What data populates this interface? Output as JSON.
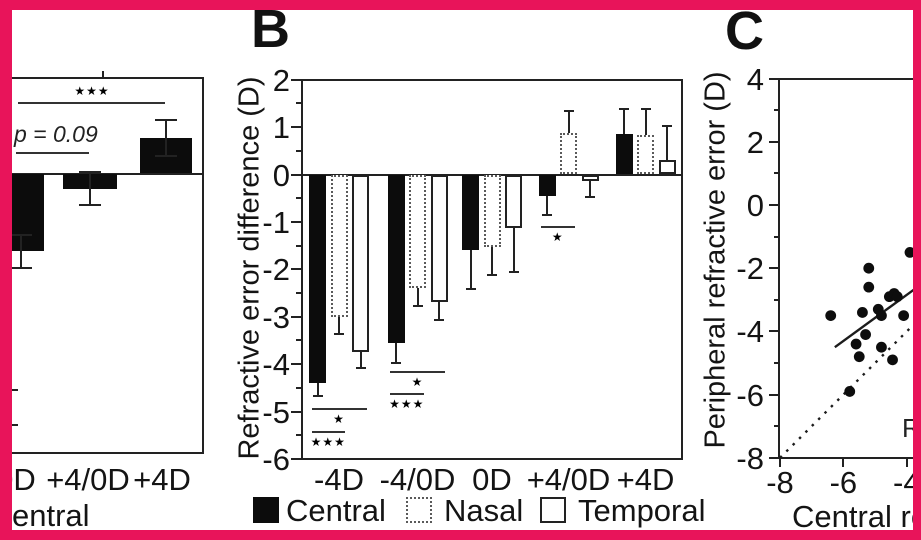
{
  "figure": {
    "border_color": "#E8145A",
    "background": "#ffffff"
  },
  "chart_data": [
    {
      "id": "A",
      "type": "bar",
      "cropped_left": true,
      "ylim": [
        -6,
        2
      ],
      "categories": [
        "0D",
        "+4/0D",
        "+4D"
      ],
      "series": [
        {
          "name": "Central",
          "fill": "black",
          "values": [
            -1.66,
            -0.32,
            0.76
          ],
          "errors": [
            0.38,
            0.37,
            0.4
          ]
        }
      ],
      "annotations": [
        {
          "kind": "significance",
          "text": "★★★",
          "y_line": 1.49
        },
        {
          "kind": "p-value",
          "text": "p = 0.09",
          "y_line": 0.43
        }
      ],
      "legend_cropped_text": "entral"
    },
    {
      "id": "B",
      "panel_label": "B",
      "type": "bar",
      "ylabel": "Refractive error difference (D)",
      "ylim": [
        -6,
        2
      ],
      "y_ticks": [
        2,
        1,
        0,
        -1,
        -2,
        -3,
        -4,
        -5,
        -6
      ],
      "categories": [
        "-4D",
        "-4/0D",
        "0D",
        "+4/0D",
        "+4D"
      ],
      "series": [
        {
          "name": "Central",
          "fill": "black",
          "values": [
            -4.4,
            -3.55,
            -1.6,
            -0.45,
            0.85
          ],
          "errors": [
            0.3,
            0.45,
            0.83,
            0.42,
            0.55
          ]
        },
        {
          "name": "Nasal",
          "fill": "stipple",
          "values": [
            -3.0,
            -2.4,
            -1.53,
            0.87,
            0.84
          ],
          "errors": [
            0.38,
            0.4,
            0.61,
            0.5,
            0.56
          ]
        },
        {
          "name": "Temporal",
          "fill": "white",
          "values": [
            -3.75,
            -2.68,
            -1.12,
            -0.14,
            0.3
          ],
          "errors": [
            0.35,
            0.42,
            0.95,
            0.36,
            0.74
          ]
        }
      ],
      "significance": [
        {
          "category": 0,
          "bars": [
            0,
            2
          ],
          "y": -4.92,
          "text": "★"
        },
        {
          "category": 0,
          "bars": [
            0,
            1
          ],
          "y": -5.42,
          "text": "★★★"
        },
        {
          "category": 1,
          "bars": [
            0,
            2
          ],
          "y": -4.15,
          "text": "★"
        },
        {
          "category": 1,
          "bars": [
            0,
            1
          ],
          "y": -4.6,
          "text": "★★★"
        },
        {
          "category": 3,
          "bars": [
            0,
            1
          ],
          "y": -1.08,
          "text": "★"
        }
      ],
      "legend": [
        {
          "label": "Central",
          "fill": "black"
        },
        {
          "label": "Nasal",
          "fill": "stipple"
        },
        {
          "label": "Temporal",
          "fill": "white"
        }
      ]
    },
    {
      "id": "C",
      "panel_label": "C",
      "type": "scatter",
      "ylabel": "Peripheral refractive error (D)",
      "xlabel_visible": "Central re",
      "xlim": [
        -8,
        -3.6
      ],
      "ylim": [
        -8,
        4
      ],
      "x_ticks": [
        -8,
        -6,
        -4
      ],
      "y_ticks": [
        4,
        2,
        0,
        -2,
        -4,
        -6,
        -8
      ],
      "points": [
        [
          -6.4,
          -3.5
        ],
        [
          -5.8,
          -5.9
        ],
        [
          -5.6,
          -4.4
        ],
        [
          -5.5,
          -4.8
        ],
        [
          -5.4,
          -3.4
        ],
        [
          -5.3,
          -4.1
        ],
        [
          -5.2,
          -2.0
        ],
        [
          -5.2,
          -2.6
        ],
        [
          -4.9,
          -3.3
        ],
        [
          -4.8,
          -3.5
        ],
        [
          -4.8,
          -4.5
        ],
        [
          -4.55,
          -2.9
        ],
        [
          -4.45,
          -4.9
        ],
        [
          -4.4,
          -2.8
        ],
        [
          -4.3,
          -2.9
        ],
        [
          -4.1,
          -3.5
        ],
        [
          -3.9,
          -1.5
        ]
      ],
      "identity_line": {
        "style": "dotted",
        "from": [
          -8,
          -8
        ],
        "to": [
          -3.6,
          -3.6
        ]
      },
      "regression_line": {
        "style": "solid",
        "from": [
          -6.27,
          -4.5
        ],
        "to": [
          -3.6,
          -2.55
        ]
      },
      "annotation_cropped": "R"
    }
  ]
}
